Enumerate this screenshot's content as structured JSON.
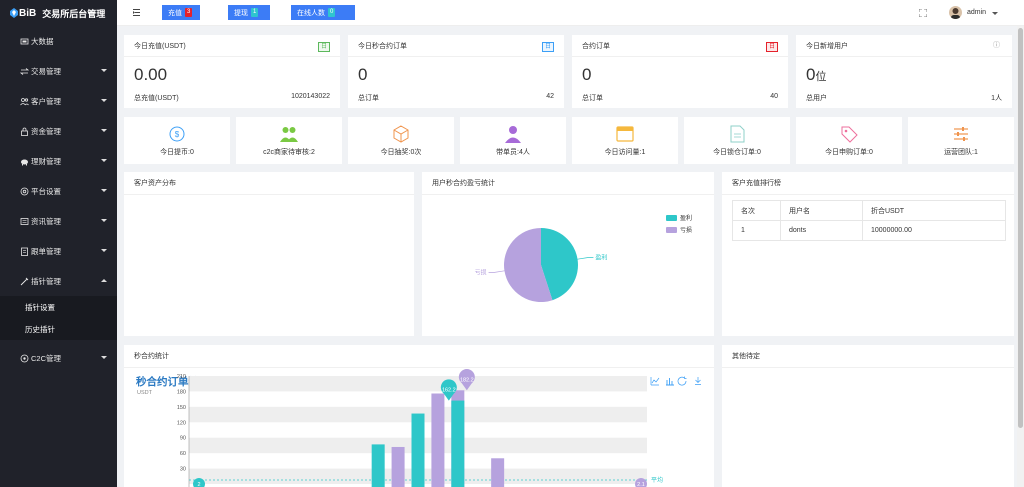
{
  "app": {
    "logo_text": "BiB",
    "title": "交易所后台管理"
  },
  "sidebar": {
    "items": [
      {
        "label": "大数据",
        "icon": "dashboard-icon"
      },
      {
        "label": "交易管理",
        "icon": "exchange-icon"
      },
      {
        "label": "客户管理",
        "icon": "users-icon"
      },
      {
        "label": "资金管理",
        "icon": "lock-icon"
      },
      {
        "label": "理财管理",
        "icon": "piggy-bank-icon"
      },
      {
        "label": "平台设置",
        "icon": "settings-icon"
      },
      {
        "label": "资讯管理",
        "icon": "news-icon"
      },
      {
        "label": "跟单管理",
        "icon": "list-icon"
      },
      {
        "label": "插针管理",
        "icon": "needle-icon"
      }
    ],
    "submenu": [
      {
        "label": "插针设置"
      },
      {
        "label": "历史插针"
      }
    ],
    "bottom_item": {
      "label": "C2C管理",
      "icon": "c2c-icon"
    }
  },
  "header": {
    "buttons": [
      {
        "label": "充值",
        "badge": "3",
        "badge_color": "#e5212b"
      },
      {
        "label": "提现",
        "badge": "1",
        "badge_color": "#2fc5cf"
      },
      {
        "label": "在线人数",
        "badge": "0",
        "badge_color": "#2fc5cf"
      }
    ],
    "user": "admin"
  },
  "stats": [
    {
      "title": "今日充值(USDT)",
      "tag": "日",
      "tag_color": "#5cb85c",
      "value": "0.00",
      "unit": "",
      "foot_label": "总充值(USDT)",
      "foot_value": "1020143022"
    },
    {
      "title": "今日秒合约订单",
      "tag": "日",
      "tag_color": "#3c9ff6",
      "value": "0",
      "unit": "",
      "foot_label": "总订单",
      "foot_value": "42"
    },
    {
      "title": "合约订单",
      "tag": "日",
      "tag_color": "#e5212b",
      "value": "0",
      "unit": "",
      "foot_label": "总订单",
      "foot_value": "40"
    },
    {
      "title": "今日新增用户",
      "tag": "ⓘ",
      "tag_color": "#999999",
      "value": "0",
      "unit": "位",
      "foot_label": "总用户",
      "foot_value": "1人"
    }
  ],
  "quick": [
    {
      "label": "今日提币:",
      "value": "0",
      "icon": "coin-icon",
      "color": "#3c9ff6"
    },
    {
      "label": "c2c商家待审核:",
      "value": "2",
      "icon": "group-icon",
      "color": "#7ac943"
    },
    {
      "label": "今日抽奖:",
      "value": "0次",
      "icon": "box-icon",
      "color": "#f0944d"
    },
    {
      "label": "带单员:",
      "value": "4人",
      "icon": "person-icon",
      "color": "#a76bd8"
    },
    {
      "label": "今日访问量:",
      "value": "1",
      "icon": "window-icon",
      "color": "#f5b83d"
    },
    {
      "label": "今日锁仓订单:",
      "value": "0",
      "icon": "document-icon",
      "color": "#8fd0c9"
    },
    {
      "label": "今日申购订单:",
      "value": "0",
      "icon": "tag-icon",
      "color": "#ee6f9c"
    },
    {
      "label": "运营团队:",
      "value": "1",
      "icon": "sliders-icon",
      "color": "#f0944d"
    }
  ],
  "panels": {
    "asset_dist": "客户资产分布",
    "pnl_stats": "用户秒合约盈亏统计",
    "recharge_rank": "客户充值排行榜",
    "second_stats": "秒合约统计",
    "other": "其他待定"
  },
  "pie_chart": {
    "type": "pie",
    "legend": [
      "盈利",
      "亏损"
    ],
    "slices": [
      {
        "name": "盈利",
        "value": 45,
        "color": "#2ec7c9"
      },
      {
        "name": "亏损",
        "value": 55,
        "color": "#b6a2de"
      }
    ]
  },
  "rank_table": {
    "headers": [
      "名次",
      "用户名",
      "折合USDT"
    ],
    "rows": [
      [
        "1",
        "donts",
        "10000000.00"
      ]
    ]
  },
  "chart_data": {
    "type": "bar",
    "title": "秒合约订单统计",
    "ylabel": "USDT",
    "ylim": [
      0,
      210
    ],
    "yticks": [
      30,
      60,
      90,
      120,
      150,
      180,
      210
    ],
    "series": [
      {
        "name": "亏损",
        "color": "#b6a2de",
        "values": [
          0,
          0,
          0,
          0,
          0,
          0,
          0,
          0,
          0,
          0,
          72,
          0,
          176,
          182.2,
          0,
          50,
          0,
          0,
          0,
          0,
          0,
          0,
          0
        ]
      },
      {
        "name": "盈利",
        "color": "#2ec7c9",
        "values": [
          0,
          0,
          0,
          0,
          0,
          0,
          0,
          0,
          0,
          77,
          0,
          137,
          0,
          162.2,
          0,
          0,
          0,
          0,
          0,
          0,
          0,
          0,
          0
        ]
      }
    ],
    "markers": [
      {
        "label": "162.2",
        "color": "#2ec7c9"
      },
      {
        "label": "182.2",
        "color": "#b6a2de"
      }
    ],
    "edge_labels": {
      "left": "2",
      "right": "2.1"
    },
    "mark_line_label": "平均"
  }
}
